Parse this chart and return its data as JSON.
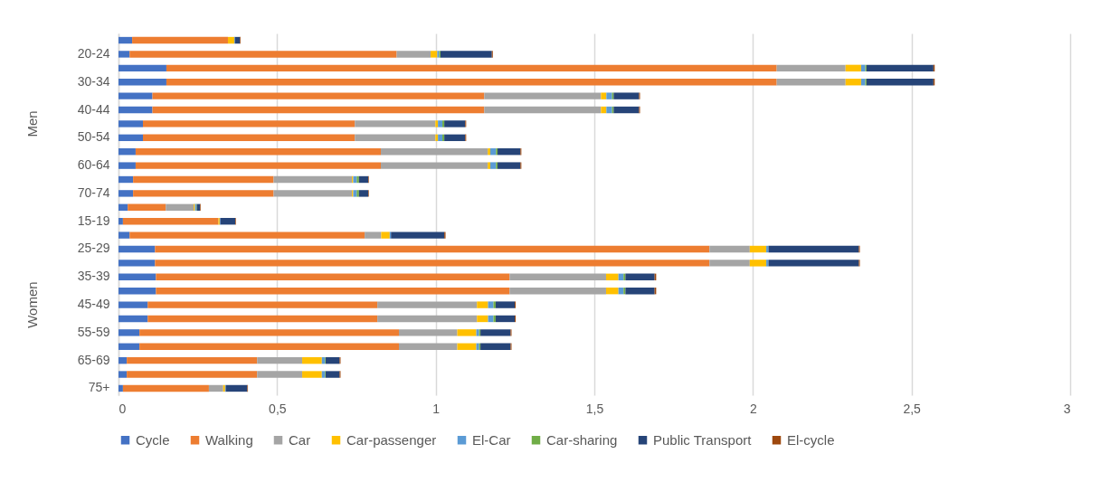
{
  "chart_data": {
    "type": "bar",
    "orientation": "horizontal",
    "stacked": true,
    "categories": [
      null,
      "20-24",
      null,
      "30-34",
      null,
      "40-44",
      null,
      "50-54",
      null,
      "60-64",
      null,
      "70-74",
      null,
      "15-19",
      null,
      "25-29",
      null,
      "35-39",
      null,
      "45-49",
      null,
      "55-59",
      null,
      "65-69",
      null,
      "75+"
    ],
    "annotations": [
      "Men",
      "Women"
    ],
    "xlim": [
      0,
      3
    ],
    "xticks": [
      0,
      {
        "value": 0.5,
        "label": "0,5"
      },
      1,
      {
        "value": 1.5,
        "label": "1,5"
      },
      2,
      {
        "value": 2.5,
        "label": "2,5"
      },
      3
    ],
    "grid": "x",
    "legend": "bottom",
    "series": [
      {
        "name": "Cycle",
        "color": "#4472c4",
        "values": [
          0.043,
          0.035,
          0.151,
          0.151,
          0.107,
          0.107,
          0.077,
          0.077,
          0.054,
          0.054,
          0.046,
          0.046,
          0.029,
          0.014,
          0.035,
          0.115,
          0.115,
          0.118,
          0.118,
          0.092,
          0.092,
          0.066,
          0.066,
          0.026,
          0.026,
          0.014
        ]
      },
      {
        "name": "Walking",
        "color": "#ed7d31",
        "values": [
          0.302,
          0.842,
          1.924,
          1.924,
          1.046,
          1.046,
          0.668,
          0.668,
          0.773,
          0.773,
          0.443,
          0.443,
          0.12,
          0.301,
          0.741,
          1.748,
          1.748,
          1.115,
          1.115,
          0.724,
          0.724,
          0.818,
          0.818,
          0.411,
          0.411,
          0.271
        ]
      },
      {
        "name": "Car",
        "color": "#a5a5a5",
        "values": [
          0,
          0.107,
          0.217,
          0.217,
          0.368,
          0.368,
          0.254,
          0.254,
          0.337,
          0.337,
          0.247,
          0.247,
          0.088,
          0,
          0.052,
          0.127,
          0.127,
          0.304,
          0.304,
          0.314,
          0.314,
          0.184,
          0.184,
          0.142,
          0.142,
          0.045
        ]
      },
      {
        "name": "Car-passenger",
        "color": "#ffc000",
        "values": [
          0.02,
          0.021,
          0.049,
          0.049,
          0.017,
          0.017,
          0.008,
          0.008,
          0.008,
          0.008,
          0.004,
          0.004,
          0.004,
          0.004,
          0.027,
          0.052,
          0.052,
          0.039,
          0.039,
          0.035,
          0.035,
          0.06,
          0.06,
          0.062,
          0.062,
          0.006
        ]
      },
      {
        "name": "El-Car",
        "color": "#5b9bd5",
        "values": [
          0.002,
          0.006,
          0.013,
          0.013,
          0.018,
          0.018,
          0.014,
          0.014,
          0.018,
          0.018,
          0.011,
          0.011,
          0.004,
          0.002,
          0.004,
          0.007,
          0.007,
          0.016,
          0.016,
          0.017,
          0.017,
          0.009,
          0.009,
          0.01,
          0.01,
          0.002
        ]
      },
      {
        "name": "Car-sharing",
        "color": "#70ad47",
        "values": [
          0,
          0.004,
          0.004,
          0.004,
          0.005,
          0.005,
          0.006,
          0.006,
          0.005,
          0.005,
          0.007,
          0.007,
          0.002,
          0,
          0,
          0,
          0,
          0.006,
          0.006,
          0.007,
          0.007,
          0.004,
          0.004,
          0.002,
          0.002,
          0
        ]
      },
      {
        "name": "Public Transport",
        "color": "#264478",
        "values": [
          0.016,
          0.162,
          0.211,
          0.211,
          0.08,
          0.08,
          0.066,
          0.066,
          0.072,
          0.072,
          0.029,
          0.029,
          0.01,
          0.047,
          0.168,
          0.285,
          0.285,
          0.092,
          0.092,
          0.06,
          0.06,
          0.095,
          0.095,
          0.044,
          0.044,
          0.068
        ]
      },
      {
        "name": "El-cycle",
        "color": "#9e480e",
        "values": [
          0.002,
          0.003,
          0.004,
          0.004,
          0.003,
          0.003,
          0.003,
          0.003,
          0.003,
          0.003,
          0.002,
          0.002,
          0.002,
          0.002,
          0.004,
          0.003,
          0.003,
          0.005,
          0.005,
          0.003,
          0.003,
          0.003,
          0.003,
          0.003,
          0.003,
          0.002
        ]
      }
    ]
  }
}
